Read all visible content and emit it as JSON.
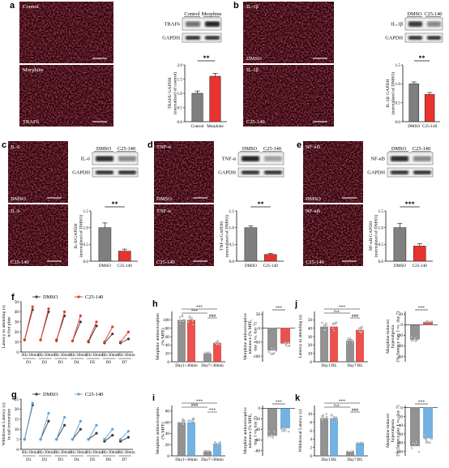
{
  "colors": {
    "grey": "#7f7f7f",
    "red": "#e8322e",
    "blue": "#5aa5dc",
    "dark": "#3b3b3b",
    "micro_bg": "#1c0306",
    "micro_fg": "#c5122a"
  },
  "panels": {
    "a": {
      "label": "a",
      "micro_top": "Control",
      "micro_mid": "Morphine",
      "micro_bottom": "TRAF6",
      "wb_cols": [
        "Control",
        "Morphine"
      ],
      "wb_rows": [
        "TRAF6",
        "GAPDH"
      ],
      "chart_data": {
        "type": "bar",
        "categories": [
          "Control",
          "Morphine"
        ],
        "values": [
          1.0,
          1.6
        ],
        "errors": [
          0.08,
          0.1
        ],
        "ylabel": "TRAF6/ GAPDH\n(normalized of control)",
        "ylim": [
          0,
          2.0
        ],
        "yticks": [
          "0.0",
          "0.5",
          "1.0",
          "1.5",
          "2.0"
        ],
        "sig": "**"
      }
    },
    "b": {
      "label": "b",
      "micro_top": "IL-1β",
      "micro_mid": "DMSO",
      "micro_lower_top": "IL-1β",
      "micro_bottom": "C25-140",
      "wb_cols": [
        "DMSO",
        "C25-140"
      ],
      "wb_rows": [
        "IL-1β",
        "GAPDH"
      ],
      "chart_data": {
        "type": "bar",
        "categories": [
          "DMSO",
          "C25-140"
        ],
        "values": [
          1.0,
          0.72
        ],
        "errors": [
          0.05,
          0.05
        ],
        "ylabel": "IL-1β/ GAPDH\n(normalized of DMSO)",
        "ylim": [
          0,
          1.5
        ],
        "yticks": [
          "0.0",
          "0.5",
          "1.0",
          "1.5"
        ],
        "sig": "**"
      }
    },
    "c": {
      "label": "c",
      "micro_top": "IL-6",
      "micro_mid": "DMSO",
      "micro_lower_top": "IL-6",
      "micro_bottom": "C25-140",
      "wb_cols": [
        "DMSO",
        "C25-140"
      ],
      "wb_rows": [
        "IL-6",
        "GAPDH"
      ],
      "chart_data": {
        "type": "bar",
        "categories": [
          "DMSO",
          "C25-140"
        ],
        "values": [
          1.0,
          0.3
        ],
        "errors": [
          0.14,
          0.06
        ],
        "ylabel": "IL-6/GAPDH\n(normalized of DMSO)",
        "ylim": [
          0,
          1.5
        ],
        "yticks": [
          "0.0",
          "0.5",
          "1.0",
          "1.5"
        ],
        "sig": "**"
      }
    },
    "d": {
      "label": "d",
      "micro_top": "TNF-α",
      "micro_mid": "DMSO",
      "micro_lower_top": "TNF-α",
      "micro_bottom": "C25-140",
      "wb_cols": [
        "DMSO",
        "C25-140"
      ],
      "wb_rows": [
        "TNF-α",
        "GAPDH"
      ],
      "chart_data": {
        "type": "bar",
        "categories": [
          "DMSO",
          "C25-140"
        ],
        "values": [
          1.0,
          0.2
        ],
        "errors": [
          0.05,
          0.03
        ],
        "ylabel": "TNF-α/GAPDH\n(normalized of DMSO)",
        "ylim": [
          0,
          1.5
        ],
        "yticks": [
          "0.0",
          "0.5",
          "1.0",
          "1.5"
        ],
        "sig": "**"
      }
    },
    "e": {
      "label": "e",
      "micro_top": "NF-κB",
      "micro_mid": "DMSO",
      "micro_lower_top": "NF-κB",
      "micro_bottom": "C25-140",
      "wb_cols": [
        "DMSO",
        "C25-140"
      ],
      "wb_rows": [
        "NF-κB",
        "GAPDH"
      ],
      "chart_data": {
        "type": "bar",
        "categories": [
          "DMSO",
          "C25-140"
        ],
        "values": [
          1.0,
          0.45
        ],
        "errors": [
          0.12,
          0.07
        ],
        "ylabel": "NF-κB/GAPDH\n(normalized of DMSO)",
        "ylim": [
          0,
          1.5
        ],
        "yticks": [
          "0.0",
          "0.5",
          "1.0",
          "1.5"
        ],
        "sig": "***"
      }
    },
    "f": {
      "label": "f",
      "legend": [
        "DMSO",
        "C25-140"
      ],
      "ylabel": "Latency to attending (s)\nin hot plate",
      "days": [
        "D1",
        "D2",
        "D3",
        "D4",
        "D5",
        "D6",
        "D7"
      ],
      "sublabels": [
        "BL",
        "+30min"
      ],
      "chart_data": {
        "type": "line",
        "ylim": [
          0,
          50
        ],
        "yticks": [
          "0",
          "10",
          "20",
          "30",
          "40",
          "50"
        ],
        "series": [
          {
            "name": "DMSO",
            "values": [
              [
                12,
                42
              ],
              [
                12,
                40
              ],
              [
                12,
                36
              ],
              [
                11,
                30
              ],
              [
                10,
                26
              ],
              [
                9,
                18
              ],
              [
                9,
                13
              ]
            ]
          },
          {
            "name": "C25-140",
            "values": [
              [
                12,
                45
              ],
              [
                12,
                43
              ],
              [
                11,
                40
              ],
              [
                11,
                36
              ],
              [
                11,
                30
              ],
              [
                10,
                25
              ],
              [
                10,
                20
              ]
            ]
          }
        ]
      }
    },
    "g": {
      "label": "g",
      "legend": [
        "DMSO",
        "C25-140"
      ],
      "ylabel": "Withdrawal Latency (s)\nin tail immersion",
      "days": [
        "D1",
        "D2",
        "D3",
        "D4",
        "D5",
        "D6",
        "D7"
      ],
      "sublabels": [
        "BL",
        "+30min"
      ],
      "chart_data": {
        "type": "line",
        "ylim": [
          0,
          25
        ],
        "yticks": [
          "0",
          "5",
          "10",
          "15",
          "20",
          "25"
        ],
        "series": [
          {
            "name": "DMSO",
            "values": [
              [
                5,
                22
              ],
              [
                5,
                14
              ],
              [
                5,
                12
              ],
              [
                5,
                10
              ],
              [
                5,
                8
              ],
              [
                4,
                7
              ],
              [
                4,
                6
              ]
            ]
          },
          {
            "name": "C25-140",
            "values": [
              [
                5,
                23
              ],
              [
                5,
                18
              ],
              [
                5,
                16
              ],
              [
                5,
                14
              ],
              [
                5,
                12
              ],
              [
                5,
                10
              ],
              [
                5,
                9
              ]
            ]
          }
        ]
      }
    },
    "h": {
      "label": "h",
      "bar": {
        "ylabel": "Morphine antinociception\n(% MPE)",
        "yticks": [
          "0",
          "20",
          "40",
          "60",
          "80",
          "100"
        ],
        "ylim": [
          0,
          120
        ],
        "groups": [
          "Day1+30min",
          "Day7+30min"
        ],
        "values": [
          [
            100,
            100
          ],
          [
            20,
            45
          ]
        ],
        "sig_top": "***",
        "sig_mid": "***",
        "sig_r": "###"
      },
      "tol": {
        "ylabel": "Morphine antinociceptive\ntolerance (% MPE,\nday 1 vs. day 7)",
        "yticks": [
          "-100",
          "-50",
          "0",
          "50"
        ],
        "ylim": [
          -120,
          60
        ],
        "values": [
          -80,
          -55
        ],
        "sig": "***"
      }
    },
    "i": {
      "label": "i",
      "bar": {
        "ylabel": "Morphine antinociception\n(% MPE)",
        "yticks": [
          "0",
          "20",
          "40",
          "60",
          "80"
        ],
        "ylim": [
          0,
          90
        ],
        "groups": [
          "Day1+30min",
          "Day7+30min"
        ],
        "values": [
          [
            60,
            60
          ],
          [
            8,
            22
          ]
        ],
        "sig_top": "***",
        "sig_mid": "###",
        "sig_r": "***"
      },
      "tol": {
        "ylabel": "Morphine antinociceptive\ntolerance (% MPE,\nday 1 vs. day 7)",
        "yticks": [
          "-80",
          "-60",
          "-40",
          "-20",
          "0"
        ],
        "ylim": [
          -90,
          5
        ],
        "values": [
          -52,
          -38
        ],
        "sig": "***"
      }
    },
    "j": {
      "label": "j",
      "bar": {
        "ylabel": "Latency to attending (s)",
        "yticks": [
          "0",
          "10",
          "20",
          "30",
          "40",
          "50"
        ],
        "ylim": [
          0,
          60
        ],
        "groups": [
          "Day1:BL",
          "Day7:BL"
        ],
        "values": [
          [
            42,
            42
          ],
          [
            25,
            38
          ]
        ],
        "sig_top": "***",
        "sig_mid": "n.s.",
        "sig_r": "###"
      },
      "tol": {
        "ylabel": "Morphine-induced\nhyperalgesia\n(% (latency day 1 vs. day 7)",
        "yticks": [
          "-60",
          "-40",
          "-20",
          "0",
          "20"
        ],
        "ylim": [
          -70,
          25
        ],
        "values": [
          -28,
          5
        ],
        "sig": "***"
      }
    },
    "k": {
      "label": "k",
      "bar": {
        "ylabel": "Withdrawal Latency (s)",
        "yticks": [
          "0",
          "2",
          "4",
          "6",
          "8",
          "10"
        ],
        "ylim": [
          0,
          12
        ],
        "groups": [
          "Day1:BL",
          "Day7:BL"
        ],
        "values": [
          [
            9,
            9
          ],
          [
            1,
            3
          ]
        ],
        "sig_top": "***",
        "sig_mid": "n.s.",
        "sig_r": "###"
      },
      "tol": {
        "ylabel": "Morphine-induced\nhyperalgesia\n(% (latency day 1 vs. day 7)",
        "yticks": [
          "-100",
          "-80",
          "-60",
          "-40",
          "-20",
          "0"
        ],
        "ylim": [
          -110,
          5
        ],
        "values": [
          -88,
          -70
        ],
        "sig": "***"
      }
    }
  }
}
